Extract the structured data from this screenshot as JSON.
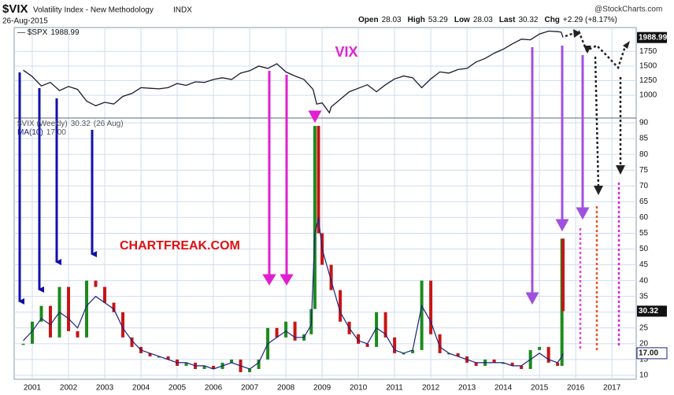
{
  "header": {
    "symbol": "$VIX",
    "name": "Volatility Index - New Methodology",
    "exchange": "INDX",
    "date": "26-Aug-2015",
    "quote": [
      {
        "label": "Open",
        "value": "28.03"
      },
      {
        "label": "High",
        "value": "53.29"
      },
      {
        "label": "Low",
        "value": "28.03"
      },
      {
        "label": "Last",
        "value": "30.32"
      },
      {
        "label": "Chg",
        "value": "+2.29 (+8.17%)"
      }
    ],
    "watermark": "@StockCharts.com"
  },
  "annotations": {
    "title": "VIX",
    "site": "CHARTFREAK.COM"
  },
  "chart_data": [
    {
      "type": "line",
      "x": [
        2000.75,
        2001,
        2001.25,
        2001.5,
        2001.75,
        2002,
        2002.25,
        2002.5,
        2002.75,
        2003,
        2003.25,
        2003.5,
        2003.75,
        2004,
        2004.25,
        2004.5,
        2004.75,
        2005,
        2005.25,
        2005.5,
        2005.75,
        2006,
        2006.25,
        2006.5,
        2006.75,
        2007,
        2007.25,
        2007.5,
        2007.75,
        2008,
        2008.25,
        2008.5,
        2008.75,
        2008.85,
        2009,
        2009.2,
        2009.25,
        2009.5,
        2009.75,
        2010,
        2010.25,
        2010.5,
        2010.75,
        2011,
        2011.25,
        2011.5,
        2011.75,
        2012,
        2012.25,
        2012.5,
        2012.75,
        2013,
        2013.25,
        2013.5,
        2013.75,
        2014,
        2014.25,
        2014.5,
        2014.75,
        2015,
        2015.25,
        2015.5,
        2015.6,
        2015.65
      ],
      "series": [
        {
          "name": "$SPX",
          "color": "#1b1b2f",
          "values": [
            1430,
            1320,
            1160,
            1220,
            1080,
            1150,
            1100,
            900,
            820,
            880,
            850,
            980,
            1030,
            1130,
            1120,
            1110,
            1130,
            1200,
            1170,
            1230,
            1220,
            1270,
            1300,
            1270,
            1380,
            1420,
            1500,
            1460,
            1540,
            1400,
            1330,
            1270,
            1100,
            850,
            870,
            700,
            800,
            930,
            1060,
            1120,
            1180,
            1060,
            1180,
            1280,
            1330,
            1300,
            1130,
            1280,
            1400,
            1380,
            1440,
            1460,
            1570,
            1630,
            1720,
            1790,
            1880,
            1960,
            1950,
            2050,
            2100,
            2090,
            2080,
            1988.99
          ]
        }
      ],
      "xlim": [
        2000.5,
        2017.67
      ],
      "ylim": [
        610,
        2160
      ],
      "yticks": [
        1000,
        1250,
        1500,
        1750
      ],
      "grid": true
    },
    {
      "type": "price-bars",
      "x": [
        2000.75,
        2001,
        2001.25,
        2001.5,
        2001.75,
        2002,
        2002.25,
        2002.5,
        2002.75,
        2003,
        2003.25,
        2003.5,
        2003.75,
        2004,
        2004.25,
        2004.5,
        2004.75,
        2005,
        2005.25,
        2005.5,
        2005.75,
        2006,
        2006.25,
        2006.5,
        2006.75,
        2007,
        2007.25,
        2007.5,
        2007.75,
        2008,
        2008.25,
        2008.5,
        2008.7,
        2008.8,
        2008.9,
        2009,
        2009.25,
        2009.5,
        2009.75,
        2010,
        2010.25,
        2010.5,
        2010.75,
        2011,
        2011.25,
        2011.5,
        2011.75,
        2012,
        2012.25,
        2012.5,
        2012.75,
        2013,
        2013.25,
        2013.5,
        2013.75,
        2014,
        2014.25,
        2014.5,
        2014.75,
        2015,
        2015.25,
        2015.5,
        2015.62,
        2015.65
      ],
      "series": [
        {
          "name": "$VIX (Weekly)",
          "note": "(26 Aug)",
          "colors": [
            "#1c8a1c",
            "#c81414"
          ],
          "values": [
            20,
            27,
            32,
            22,
            38,
            24,
            22,
            40,
            38,
            33,
            30,
            22,
            19,
            17,
            16,
            16,
            15,
            13,
            14,
            12,
            13,
            12,
            14,
            15,
            11,
            12,
            15,
            25,
            22,
            27,
            21,
            23,
            31,
            89,
            55,
            45,
            37,
            27,
            23,
            20,
            19,
            30,
            22,
            17,
            17,
            18,
            40,
            23,
            17,
            17,
            16,
            14,
            13,
            15,
            14,
            14,
            13,
            12,
            18,
            19,
            14,
            13,
            53.29,
            30.32
          ]
        },
        {
          "name": "MA(10)",
          "color": "#1a237e",
          "last_label": "17.00",
          "values": [
            21,
            24,
            28,
            26,
            30,
            28,
            25,
            32,
            35,
            33,
            31,
            25,
            21,
            18,
            17,
            16,
            15,
            14,
            14,
            13,
            13,
            12,
            13,
            14,
            13,
            12,
            14,
            20,
            22,
            24,
            22,
            22,
            26,
            55,
            60,
            50,
            40,
            30,
            25,
            21,
            20,
            25,
            23,
            18,
            17,
            18,
            32,
            27,
            19,
            17,
            16,
            15,
            14,
            14,
            14,
            14,
            13,
            13,
            15,
            17,
            15,
            14,
            16,
            17
          ]
        }
      ],
      "xlim": [
        2000.5,
        2017.67
      ],
      "xticks": [
        2001,
        2002,
        2003,
        2004,
        2005,
        2006,
        2007,
        2008,
        2009,
        2010,
        2011,
        2012,
        2013,
        2014,
        2015,
        2016,
        2017
      ],
      "ylim": [
        8.75,
        91.5
      ],
      "yticks": [
        10,
        15,
        20,
        25,
        30,
        35,
        40,
        45,
        50,
        55,
        60,
        65,
        70,
        75,
        80,
        85,
        90
      ],
      "grid": true
    }
  ]
}
